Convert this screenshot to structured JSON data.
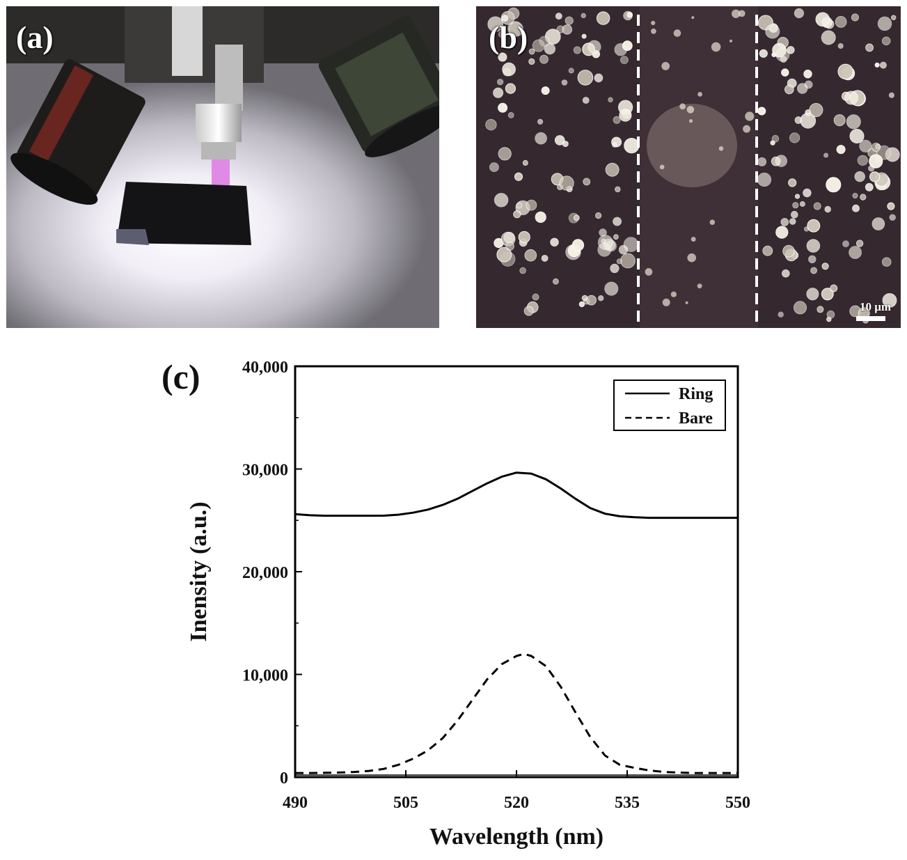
{
  "panels": {
    "a": {
      "label": "(a)"
    },
    "b": {
      "label": "(b)",
      "scale_label": "10 μm"
    },
    "c": {
      "label": "(c)"
    }
  },
  "chart_data": {
    "type": "line",
    "xlabel": "Wavelength (nm)",
    "ylabel": "Inensity (a.u.)",
    "xlim": [
      490,
      550
    ],
    "ylim": [
      0,
      40000
    ],
    "x_ticks": [
      490,
      505,
      520,
      535,
      550
    ],
    "x_tick_labels": [
      "490",
      "505",
      "520",
      "535",
      "550"
    ],
    "y_ticks": [
      0,
      10000,
      20000,
      30000,
      40000
    ],
    "y_tick_labels": [
      "0",
      "10,000",
      "20,000",
      "30,000",
      "40,000"
    ],
    "legend_position": "top-right",
    "grid": false,
    "series": [
      {
        "name": "Ring",
        "style": "solid",
        "color": "#000000",
        "x": [
          490,
          492,
          494,
          496,
          498,
          500,
          502,
          504,
          506,
          508,
          510,
          512,
          514,
          516,
          518,
          520,
          522,
          524,
          526,
          528,
          530,
          532,
          534,
          536,
          538,
          540,
          542,
          544,
          546,
          548,
          550
        ],
        "y": [
          25600,
          25500,
          25450,
          25450,
          25450,
          25450,
          25460,
          25550,
          25750,
          26050,
          26500,
          27100,
          27850,
          28600,
          29250,
          29650,
          29550,
          29000,
          28100,
          27100,
          26200,
          25650,
          25400,
          25300,
          25250,
          25250,
          25250,
          25250,
          25250,
          25250,
          25250
        ]
      },
      {
        "name": "Bare",
        "style": "dashed",
        "color": "#000000",
        "x": [
          490,
          492,
          494,
          496,
          498,
          500,
          502,
          504,
          506,
          508,
          510,
          512,
          514,
          516,
          518,
          520,
          521,
          522,
          524,
          526,
          528,
          530,
          532,
          534,
          536,
          538,
          540,
          542,
          544,
          546,
          548,
          550
        ],
        "y": [
          400,
          400,
          420,
          450,
          500,
          600,
          800,
          1200,
          1800,
          2600,
          3800,
          5500,
          7500,
          9500,
          11000,
          11800,
          12000,
          11800,
          10800,
          8800,
          6300,
          3900,
          2100,
          1200,
          900,
          650,
          500,
          450,
          400,
          400,
          400,
          400
        ]
      }
    ]
  }
}
